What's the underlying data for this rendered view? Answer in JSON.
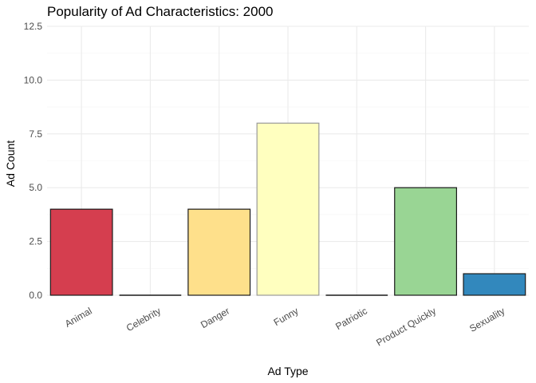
{
  "chart_data": {
    "type": "bar",
    "title": "Popularity of Ad Characteristics: 2000",
    "xlabel": "Ad Type",
    "ylabel": "Ad Count",
    "categories": [
      "Animal",
      "Celebrity",
      "Danger",
      "Funny",
      "Patriotic",
      "Product Quickly",
      "Sexuality"
    ],
    "values": [
      4,
      0,
      4,
      8,
      0,
      5,
      1
    ],
    "colors": [
      "#d53e4f",
      "#d53e4f",
      "#fee08b",
      "#ffffbf",
      "#ffffbf",
      "#99d594",
      "#3288bd"
    ],
    "ylim": [
      0,
      12.5
    ],
    "y_ticks": [
      "0.0",
      "2.5",
      "5.0",
      "7.5",
      "10.0",
      "12.5"
    ],
    "grid": true,
    "legend": "none"
  }
}
